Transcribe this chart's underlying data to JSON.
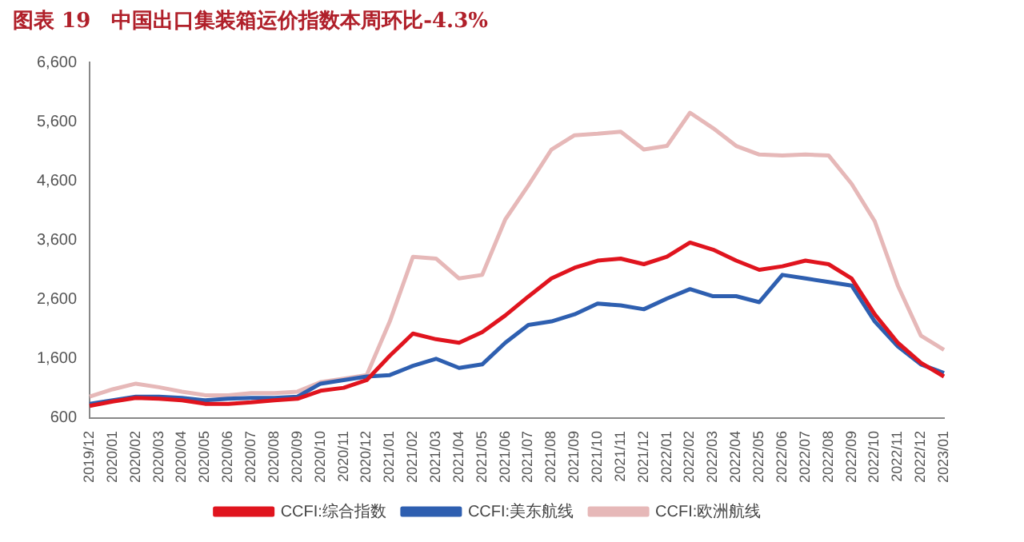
{
  "chart_data": {
    "type": "line",
    "title": "图表 19　中国出口集装箱运价指数本周环比-4.3%",
    "categories": [
      "2019/12",
      "2020/01",
      "2020/02",
      "2020/03",
      "2020/04",
      "2020/05",
      "2020/06",
      "2020/07",
      "2020/08",
      "2020/09",
      "2020/10",
      "2020/11",
      "2020/12",
      "2021/01",
      "2021/02",
      "2021/03",
      "2021/04",
      "2021/05",
      "2021/06",
      "2021/07",
      "2021/08",
      "2021/09",
      "2021/10",
      "2021/11",
      "2021/12",
      "2022/01",
      "2022/02",
      "2022/03",
      "2022/04",
      "2022/05",
      "2022/06",
      "2022/07",
      "2022/08",
      "2022/09",
      "2022/10",
      "2022/11",
      "2022/12",
      "2023/01"
    ],
    "series": [
      {
        "name": "CCFI:综合指数",
        "color": "#e0141e",
        "values": [
          805,
          880,
          940,
          925,
          900,
          840,
          840,
          865,
          900,
          925,
          1060,
          1110,
          1240,
          1650,
          2025,
          1930,
          1870,
          2050,
          2330,
          2650,
          2955,
          3135,
          3255,
          3290,
          3195,
          3320,
          3560,
          3440,
          3255,
          3100,
          3160,
          3255,
          3195,
          2955,
          2350,
          1870,
          1530,
          1300
        ]
      },
      {
        "name": "CCFI:美东航线",
        "color": "#2e5fb0",
        "values": [
          840,
          900,
          960,
          960,
          940,
          900,
          925,
          940,
          940,
          960,
          1180,
          1240,
          1300,
          1325,
          1480,
          1600,
          1445,
          1505,
          1870,
          2170,
          2230,
          2350,
          2530,
          2500,
          2435,
          2615,
          2775,
          2655,
          2655,
          2555,
          3015,
          2955,
          2895,
          2835,
          2230,
          1810,
          1505,
          1360
        ]
      },
      {
        "name": "CCFI:欧洲航线",
        "color": "#e6b8b8",
        "values": [
          960,
          1085,
          1180,
          1120,
          1045,
          985,
          985,
          1020,
          1020,
          1045,
          1205,
          1265,
          1325,
          2230,
          3320,
          3290,
          2955,
          3015,
          3950,
          4525,
          5130,
          5370,
          5395,
          5430,
          5130,
          5190,
          5750,
          5490,
          5190,
          5045,
          5030,
          5045,
          5030,
          4550,
          3920,
          2835,
          1990,
          1750
        ]
      }
    ],
    "ylim": [
      600,
      6600
    ],
    "yticks": [
      {
        "value": 600,
        "label": "600"
      },
      {
        "value": 1600,
        "label": "1,600"
      },
      {
        "value": 2600,
        "label": "2,600"
      },
      {
        "value": 3600,
        "label": "3,600"
      },
      {
        "value": 4600,
        "label": "4,600"
      },
      {
        "value": 5600,
        "label": "5,600"
      },
      {
        "value": 6600,
        "label": "6,600"
      }
    ],
    "grid": false,
    "legend": "bottom",
    "marker": "none",
    "line_style": "solid"
  }
}
